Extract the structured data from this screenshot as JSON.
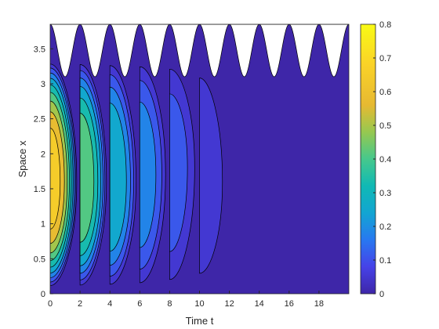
{
  "chart_data": {
    "type": "heatmap",
    "subtype": "filled-contour",
    "title": "",
    "xlabel": "Time t",
    "ylabel": "Space x",
    "xlim": [
      0,
      20
    ],
    "ylim": [
      0,
      3.85
    ],
    "xticks": [
      "0",
      "2",
      "4",
      "6",
      "8",
      "10",
      "12",
      "14",
      "16",
      "18"
    ],
    "yticks": [
      "0",
      "0.5",
      "1",
      "1.5",
      "2",
      "2.5",
      "3",
      "3.5"
    ],
    "colorbar": {
      "colormap": "parula",
      "range": [
        0,
        0.8
      ],
      "ticks": [
        "0",
        "0.1",
        "0.2",
        "0.3",
        "0.4",
        "0.5",
        "0.6",
        "0.7",
        "0.8"
      ]
    },
    "domain_boundary": {
      "description": "upper boundary oscillates periodically with period 2 in time",
      "period": 2,
      "min_x": 3.1,
      "max_x": 3.85
    },
    "intervals": [
      {
        "t_start": 0,
        "t_end": 2,
        "peak_value": 0.65,
        "peak_x": 1.6
      },
      {
        "t_start": 2,
        "t_end": 4,
        "peak_value": 0.45,
        "peak_x": 1.6
      },
      {
        "t_start": 4,
        "t_end": 6,
        "peak_value": 0.3,
        "peak_x": 1.6
      },
      {
        "t_start": 6,
        "t_end": 8,
        "peak_value": 0.2,
        "peak_x": 1.7
      },
      {
        "t_start": 8,
        "t_end": 10,
        "peak_value": 0.12,
        "peak_x": 1.8
      },
      {
        "t_start": 10,
        "t_end": 12,
        "peak_value": 0.06,
        "peak_x": 1.6
      }
    ],
    "grid": false,
    "legend": "none"
  },
  "colors": {
    "low": "#3e26a8",
    "high": "#f9fb15",
    "background_white": "#ffffff",
    "axis": "#262626",
    "contour_line": "#000000"
  }
}
